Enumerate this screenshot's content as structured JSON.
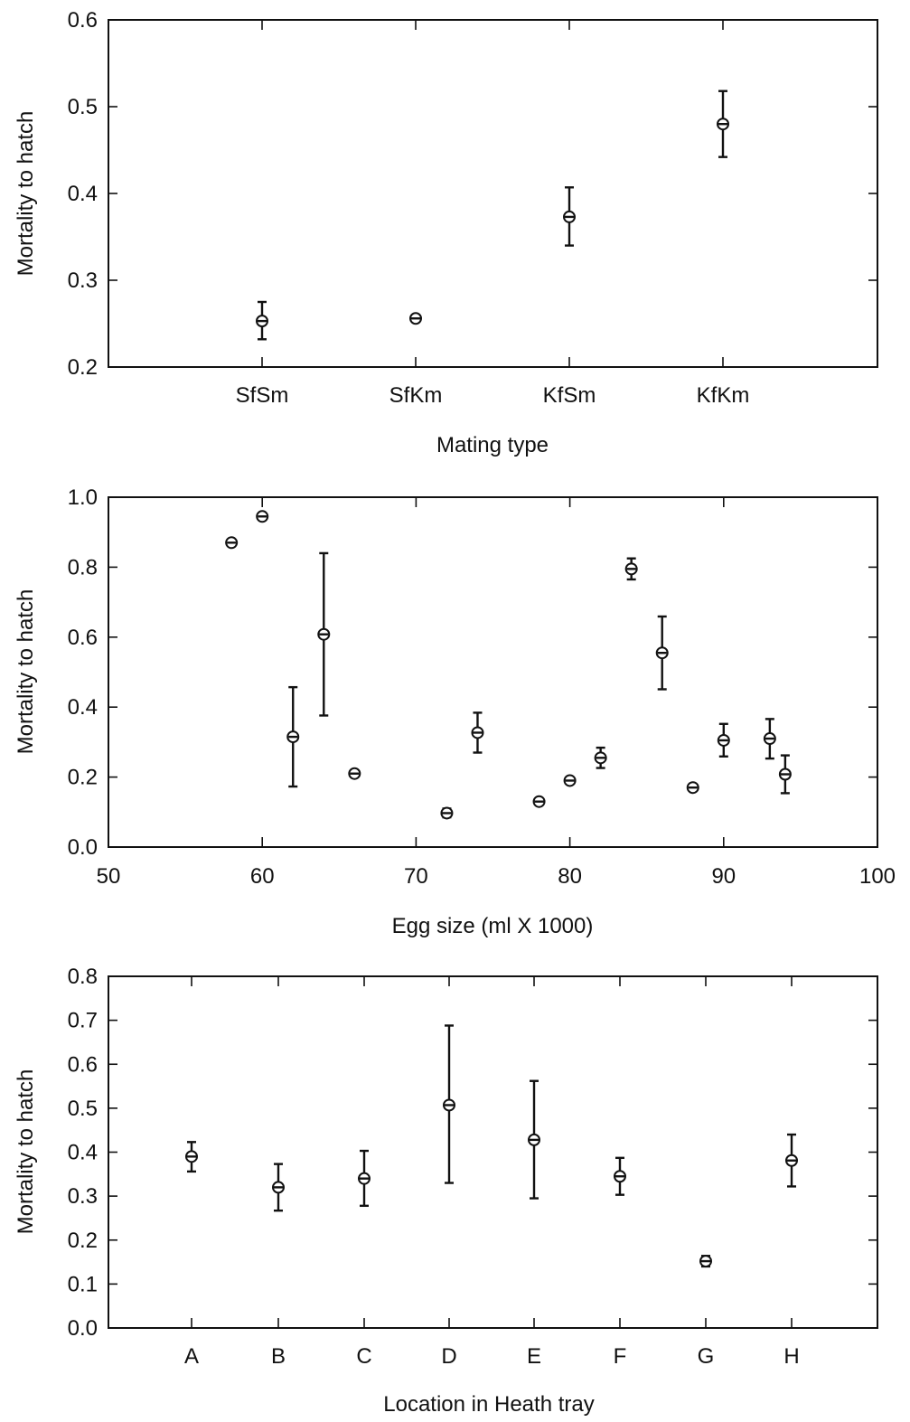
{
  "chart_data": [
    {
      "type": "scatter",
      "title": "",
      "xlabel": "Mating type",
      "ylabel": "Mortality to hatch",
      "x_scale": "categorical",
      "categories": [
        "SfSm",
        "SfKm",
        "KfSm",
        "KfKm"
      ],
      "ylim": [
        0.2,
        0.6
      ],
      "yticks": [
        "0.2",
        "0.3",
        "0.4",
        "0.5",
        "0.6"
      ],
      "points": [
        {
          "x": "SfSm",
          "y": 0.253,
          "ylo": 0.232,
          "yhi": 0.275
        },
        {
          "x": "SfKm",
          "y": 0.256,
          "ylo": 0.253,
          "yhi": 0.259
        },
        {
          "x": "KfSm",
          "y": 0.373,
          "ylo": 0.34,
          "yhi": 0.407
        },
        {
          "x": "KfKm",
          "y": 0.48,
          "ylo": 0.442,
          "yhi": 0.518
        }
      ],
      "grid": false
    },
    {
      "type": "scatter",
      "title": "",
      "xlabel": "Egg size (ml X 1000)",
      "ylabel": "Mortality to hatch",
      "x_scale": "linear",
      "xlim": [
        50,
        100
      ],
      "xticks": [
        "50",
        "60",
        "70",
        "80",
        "90",
        "100"
      ],
      "ylim": [
        0.0,
        1.0
      ],
      "yticks": [
        "0.0",
        "0.2",
        "0.4",
        "0.6",
        "0.8",
        "1.0"
      ],
      "points": [
        {
          "x": 58,
          "y": 0.87,
          "ylo": 0.865,
          "yhi": 0.876
        },
        {
          "x": 60,
          "y": 0.945,
          "ylo": 0.94,
          "yhi": 0.95
        },
        {
          "x": 62,
          "y": 0.315,
          "ylo": 0.173,
          "yhi": 0.457
        },
        {
          "x": 64,
          "y": 0.608,
          "ylo": 0.376,
          "yhi": 0.84
        },
        {
          "x": 66,
          "y": 0.21,
          "ylo": 0.205,
          "yhi": 0.215
        },
        {
          "x": 72,
          "y": 0.097,
          "ylo": 0.085,
          "yhi": 0.11
        },
        {
          "x": 74,
          "y": 0.327,
          "ylo": 0.27,
          "yhi": 0.384
        },
        {
          "x": 78,
          "y": 0.13,
          "ylo": 0.125,
          "yhi": 0.135
        },
        {
          "x": 80,
          "y": 0.19,
          "ylo": 0.182,
          "yhi": 0.198
        },
        {
          "x": 82,
          "y": 0.255,
          "ylo": 0.226,
          "yhi": 0.284
        },
        {
          "x": 84,
          "y": 0.795,
          "ylo": 0.765,
          "yhi": 0.825
        },
        {
          "x": 86,
          "y": 0.555,
          "ylo": 0.451,
          "yhi": 0.659
        },
        {
          "x": 88,
          "y": 0.17,
          "ylo": 0.165,
          "yhi": 0.175
        },
        {
          "x": 90,
          "y": 0.305,
          "ylo": 0.259,
          "yhi": 0.352
        },
        {
          "x": 93,
          "y": 0.31,
          "ylo": 0.253,
          "yhi": 0.366
        },
        {
          "x": 94,
          "y": 0.208,
          "ylo": 0.154,
          "yhi": 0.262
        }
      ],
      "grid": false
    },
    {
      "type": "scatter",
      "title": "",
      "xlabel": "Location in Heath tray",
      "ylabel": "Mortality to hatch",
      "x_scale": "categorical",
      "categories": [
        "A",
        "B",
        "C",
        "D",
        "E",
        "F",
        "G",
        "H"
      ],
      "ylim": [
        0.0,
        0.8
      ],
      "yticks": [
        "0.0",
        "0.1",
        "0.2",
        "0.3",
        "0.4",
        "0.5",
        "0.6",
        "0.7",
        "0.8"
      ],
      "points": [
        {
          "x": "A",
          "y": 0.39,
          "ylo": 0.356,
          "yhi": 0.423
        },
        {
          "x": "B",
          "y": 0.32,
          "ylo": 0.267,
          "yhi": 0.373
        },
        {
          "x": "C",
          "y": 0.34,
          "ylo": 0.278,
          "yhi": 0.403
        },
        {
          "x": "D",
          "y": 0.507,
          "ylo": 0.33,
          "yhi": 0.688
        },
        {
          "x": "E",
          "y": 0.428,
          "ylo": 0.295,
          "yhi": 0.562
        },
        {
          "x": "F",
          "y": 0.345,
          "ylo": 0.303,
          "yhi": 0.387
        },
        {
          "x": "G",
          "y": 0.152,
          "ylo": 0.14,
          "yhi": 0.164
        },
        {
          "x": "H",
          "y": 0.381,
          "ylo": 0.322,
          "yhi": 0.44
        }
      ],
      "grid": false
    }
  ]
}
